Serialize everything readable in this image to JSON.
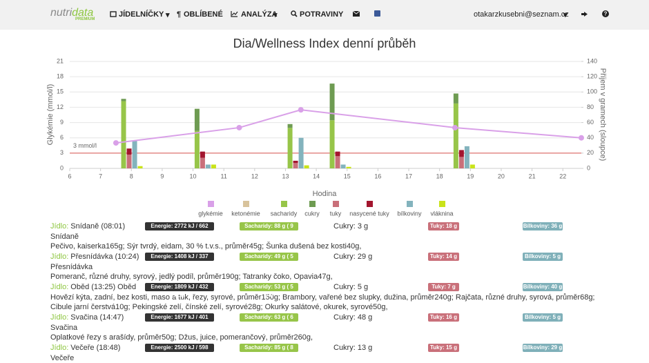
{
  "navbar": {
    "logo": [
      "nutri",
      "data"
    ],
    "logo_sub": "PREMIUM",
    "menu": [
      "JÍDELNÍČKY",
      "OBLÍBENÉ",
      "ANALÝZA",
      "POTRAVINY"
    ],
    "user": "otakarzkusebni@seznam.cz"
  },
  "chart_data": {
    "type": "bar",
    "title": "Dia/Wellness Index denní průběh",
    "x_label": "Hodina",
    "y_label": "Glykémie (mmol/l)",
    "y2_label": "Příjem v gramech (sloupce)",
    "x": [
      8.017,
      10.4,
      13.417,
      14.783,
      18.8
    ],
    "xlim": [
      6,
      22.6
    ],
    "xticks": [
      6,
      7,
      8,
      9,
      10,
      11,
      12,
      13,
      14,
      15,
      16,
      17,
      18,
      19,
      20,
      21,
      22
    ],
    "ylim": [
      0,
      21
    ],
    "yticks": [
      0,
      3,
      6,
      9,
      12,
      15,
      18,
      21
    ],
    "y2lim": [
      0,
      140
    ],
    "y2ticks": [
      0,
      20,
      40,
      60,
      80,
      100,
      120,
      140
    ],
    "grid": true,
    "reference_lines": [
      {
        "value": 3,
        "label": "3 mmol/l",
        "color": "#d9534f"
      }
    ],
    "series": [
      {
        "name": "glykémie",
        "color": "#d9a0e8",
        "type": "line",
        "x": [
          7.5,
          11.5,
          13.5,
          18.5,
          22.6
        ],
        "values": [
          5,
          8,
          11.5,
          8,
          6
        ]
      },
      {
        "name": "ketonémie",
        "color": "#d8c39c",
        "values": [
          null,
          null,
          null,
          null,
          null
        ]
      },
      {
        "name": "sacharidy",
        "color": "#97c549",
        "axis": "y2",
        "values": [
          88,
          49,
          53,
          63,
          85
        ]
      },
      {
        "name": "cukry",
        "color": "#6e9b52",
        "axis": "y2",
        "values": [
          3,
          29,
          5,
          48,
          13
        ]
      },
      {
        "name": "tuky",
        "color": "#c9707a",
        "axis": "y2",
        "values": [
          18,
          14,
          7,
          16,
          15
        ]
      },
      {
        "name": "nasycené tuky",
        "color": "#a3152e",
        "axis": "y2",
        "values": [
          8,
          8,
          3,
          6,
          9
        ]
      },
      {
        "name": "bílkoviny",
        "color": "#83b3bd",
        "axis": "y2",
        "values": [
          36,
          5,
          40,
          5,
          29
        ]
      },
      {
        "name": "vláknina",
        "color": "#c9e31a",
        "axis": "y2",
        "values": [
          3,
          5,
          4,
          2,
          5
        ]
      }
    ]
  },
  "meals": [
    {
      "label": "Jídlo:",
      "name": "Snídaně (08:01)",
      "energy": "Energie: 2772 kJ / 662 kcal",
      "carbs": "Sacharidy: 88 g ( 9 VJ)",
      "sugars": "Cukry: 3 g",
      "fats": "Tuky: 18 g",
      "proteins": "Bílkoviny: 36 g",
      "subtitle": "Snídaně",
      "foods": "Pečivo, kaiserka165g; Sýr tvrdý, eidam, 30 % t.v.s., průměr45g; Šunka dušená bez kosti40g,"
    },
    {
      "label": "Jídlo:",
      "name": "Přesnídávka (10:24)",
      "energy": "Energie: 1408 kJ / 337 kcal",
      "carbs": "Sacharidy: 49 g ( 5 VJ)",
      "sugars": "Cukry: 29 g",
      "fats": "Tuky: 14 g",
      "proteins": "Bílkoviny: 5 g",
      "subtitle": "Přesnídávka",
      "foods": "Pomeranč, různé druhy, syrový, jedlý podíl, průměr190g; Tatranky čoko, Opavia47g,"
    },
    {
      "label": "Jídlo:",
      "name": "Oběd (13:25) Oběd",
      "energy": "Energie: 1809 kJ / 432 kcal",
      "carbs": "Sacharidy: 53 g ( 5 VJ)",
      "sugars": "Cukry: 5 g",
      "fats": "Tuky: 7 g",
      "proteins": "Bílkoviny: 40 g",
      "foods": "Hovězí kýta, zadní, bez kosti, maso a tuk, řezy, syrové, průměr150g; Brambory, vařené bez slupky, dužina, průměr240g; Rajčata, různé druhy, syrová, průměr68g; Cibule jarní čerstvá10g; Pekingské zelí, čínské zelí, syrové28g; Okurky salátové, okurek, syrové50g,"
    },
    {
      "label": "Jídlo:",
      "name": "Svačina (14:47)",
      "energy": "Energie: 1677 kJ / 401 kcal",
      "carbs": "Sacharidy: 63 g ( 6 VJ)",
      "sugars": "Cukry: 48 g",
      "fats": "Tuky: 16 g",
      "proteins": "Bílkoviny: 5 g",
      "subtitle": "Svačina",
      "foods": "Oplatkové řezy s arašídy, průměr50g; Džus, juice, pomerančový, průměr260g,"
    },
    {
      "label": "Jídlo:",
      "name": "Večeře (18:48)",
      "energy": "Energie: 2500 kJ / 598 kcal",
      "carbs": "Sacharidy: 85 g ( 8 VJ)",
      "sugars": "Cukry: 13 g",
      "fats": "Tuky: 15 g",
      "proteins": "Bílkoviny: 29 g",
      "subtitle": "Večeře"
    }
  ]
}
